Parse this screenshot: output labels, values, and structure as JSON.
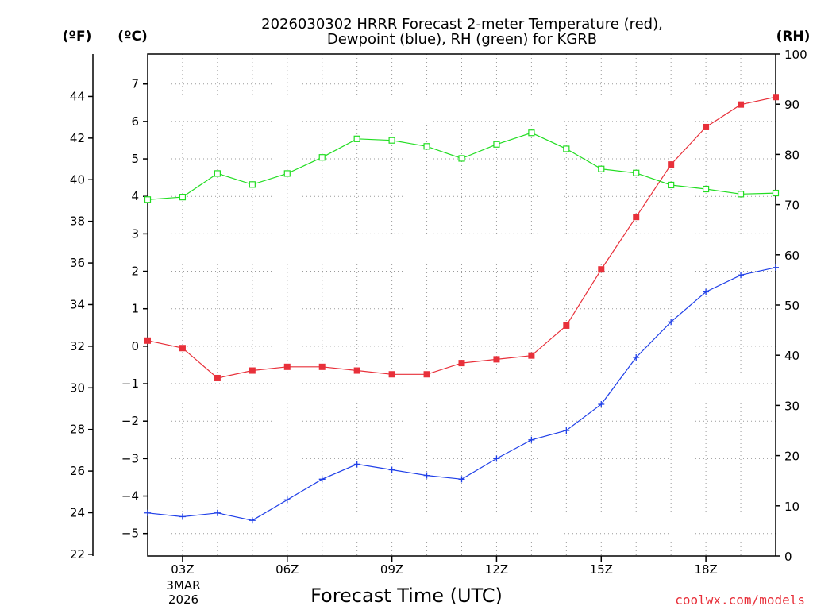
{
  "chart_data": {
    "type": "line",
    "title_line1": "2026030302 HRRR Forecast 2-meter Temperature (red),",
    "title_line2": "Dewpoint (blue), RH (green) for KGRB",
    "left_outer_unit": "(ºF)",
    "left_inner_unit": "(ºC)",
    "right_unit": "(RH)",
    "xlabel": "Forecast Time (UTC)",
    "credit": "coolwx.com/models",
    "date_label": [
      "3MAR",
      "2026"
    ],
    "x_hours": [
      2,
      3,
      4,
      5,
      6,
      7,
      8,
      9,
      10,
      11,
      12,
      13,
      14,
      15,
      16,
      17,
      18,
      19,
      20
    ],
    "x_ticks": [
      {
        "hour": 3,
        "label": "03Z"
      },
      {
        "hour": 6,
        "label": "06Z"
      },
      {
        "hour": 9,
        "label": "09Z"
      },
      {
        "hour": 12,
        "label": "12Z"
      },
      {
        "hour": 15,
        "label": "15Z"
      },
      {
        "hour": 18,
        "label": "18Z"
      }
    ],
    "xlim": [
      2,
      20
    ],
    "c_ylim": [
      -5.6,
      7.8
    ],
    "c_ticks": [
      -5,
      -4,
      -3,
      -2,
      -1,
      0,
      1,
      2,
      3,
      4,
      5,
      6,
      7
    ],
    "f_ticks": [
      22,
      24,
      26,
      28,
      30,
      32,
      34,
      36,
      38,
      40,
      42,
      44
    ],
    "rh_ylim": [
      0,
      100
    ],
    "rh_ticks": [
      0,
      10,
      20,
      30,
      40,
      50,
      60,
      70,
      80,
      90,
      100
    ],
    "series": [
      {
        "name": "Temperature",
        "axis": "C",
        "color": "#e8303a",
        "marker": "filled-square",
        "values": [
          0.15,
          -0.05,
          -0.85,
          -0.65,
          -0.55,
          -0.55,
          -0.65,
          -0.75,
          -0.75,
          -0.45,
          -0.35,
          -0.25,
          0.55,
          2.05,
          3.45,
          4.85,
          5.85,
          6.45,
          6.65
        ]
      },
      {
        "name": "Dewpoint",
        "axis": "C",
        "color": "#2040e8",
        "marker": "plus",
        "values": [
          -4.45,
          -4.55,
          -4.45,
          -4.65,
          -4.1,
          -3.55,
          -3.15,
          -3.3,
          -3.45,
          -3.55,
          -3.0,
          -2.5,
          -2.25,
          -1.55,
          -0.3,
          0.65,
          1.45,
          1.9,
          2.1
        ]
      },
      {
        "name": "RH",
        "axis": "RH",
        "color": "#22dd22",
        "marker": "open-square",
        "values": [
          71,
          71.5,
          76.2,
          74,
          76.2,
          79.4,
          83.1,
          82.8,
          81.6,
          79.2,
          82,
          84.3,
          81.1,
          77.1,
          76.3,
          73.9,
          73.1,
          72.1,
          72.3
        ]
      }
    ]
  }
}
